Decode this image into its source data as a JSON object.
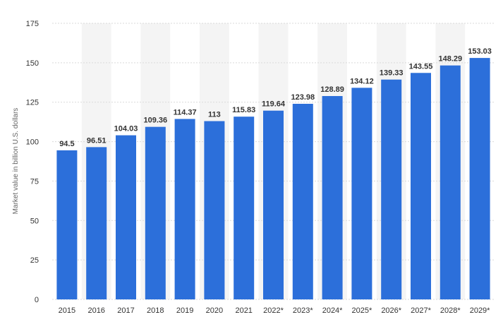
{
  "chart_data": {
    "type": "bar",
    "categories": [
      "2015",
      "2016",
      "2017",
      "2018",
      "2019",
      "2020",
      "2021",
      "2022*",
      "2023*",
      "2024*",
      "2025*",
      "2026*",
      "2027*",
      "2028*",
      "2029*"
    ],
    "values": [
      94.5,
      96.51,
      104.03,
      109.36,
      114.37,
      113,
      115.83,
      119.64,
      123.98,
      128.89,
      134.12,
      139.33,
      143.55,
      148.29,
      153.03
    ],
    "value_labels": [
      "94.5",
      "96.51",
      "104.03",
      "109.36",
      "114.37",
      "113",
      "115.83",
      "119.64",
      "123.98",
      "128.89",
      "134.12",
      "139.33",
      "143.55",
      "148.29",
      "153.03"
    ],
    "ylabel": "Market value in billion U.S. dollars",
    "xlabel": "",
    "title": "",
    "ylim": [
      0,
      175
    ],
    "yticks": [
      "0",
      "25",
      "50",
      "75",
      "100",
      "125",
      "150",
      "175"
    ],
    "grid": true,
    "bar_color": "#2c6fda",
    "band_color": "#f4f4f4",
    "grid_color": "#d9d9d9"
  }
}
